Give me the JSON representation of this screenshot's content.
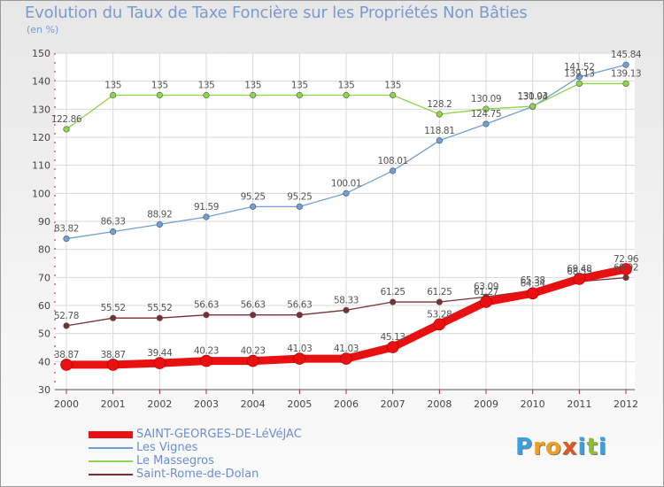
{
  "title": "Evolution du Taux de Taxe Foncière sur les Propriétés Non Bâties",
  "unit": "(en %)",
  "logo": {
    "text": "Proxiti",
    "colors": [
      "#3aa0e0",
      "#f0a020",
      "#f0a020",
      "#e05a20",
      "#3aa0e0",
      "#90c030",
      "#3aa0e0"
    ]
  },
  "chart_data": {
    "type": "line",
    "title": "Evolution du Taux de Taxe Foncière sur les Propriétés Non Bâties",
    "ylabel": "(en %)",
    "x": [
      "2000",
      "2001",
      "2002",
      "2003",
      "2004",
      "2005",
      "2006",
      "2007",
      "2008",
      "2009",
      "2010",
      "2011",
      "2012"
    ],
    "ylim": [
      30,
      150
    ],
    "yticks": [
      "30",
      "40",
      "50",
      "60",
      "70",
      "80",
      "90",
      "100",
      "110",
      "120",
      "130",
      "140",
      "150"
    ],
    "grid": true,
    "legend_placement": "bottom-left",
    "series": [
      {
        "name": "SAINT-GEORGES-DE-LéVéJAC",
        "color": "#e81010",
        "width": 9,
        "values": [
          38.87,
          38.87,
          39.44,
          40.23,
          40.23,
          41.03,
          41.03,
          45.13,
          53.28,
          61.27,
          64.34,
          69.48,
          72.96
        ],
        "labels": [
          "38.87",
          "38.87",
          "39.44",
          "40.23",
          "40.23",
          "41.03",
          "41.03",
          "45.13",
          "53.28",
          "61.27",
          "64.34",
          "69.48",
          "72.96"
        ]
      },
      {
        "name": "Les Vignes",
        "color": "#6f9fd6",
        "width": 1.3,
        "values": [
          83.82,
          86.33,
          88.92,
          91.59,
          95.25,
          95.25,
          100.01,
          108.01,
          118.81,
          124.75,
          130.94,
          141.52,
          145.84
        ],
        "labels": [
          "83.82",
          "86.33",
          "88.92",
          "91.59",
          "95.25",
          "95.25",
          "100.01",
          "108.01",
          "118.81",
          "124.75",
          "130.94",
          "141.52",
          "145.84"
        ]
      },
      {
        "name": "Le Massegros",
        "color": "#8cd64a",
        "width": 1.3,
        "values": [
          122.86,
          135,
          135,
          135,
          135,
          135,
          135,
          135,
          128.2,
          130.09,
          131.03,
          139.13,
          139.13
        ],
        "labels": [
          "122.86",
          "135",
          "135",
          "135",
          "135",
          "135",
          "135",
          "135",
          "128.2",
          "130.09",
          "131.03",
          "139.13",
          "139.13"
        ]
      },
      {
        "name": "Saint-Rome-de-Dolan",
        "color": "#7a3030",
        "width": 1.3,
        "values": [
          52.78,
          55.52,
          55.52,
          56.63,
          56.63,
          56.63,
          58.33,
          61.25,
          61.25,
          63.09,
          65.38,
          68.55,
          69.92
        ],
        "labels": [
          "52.78",
          "55.52",
          "55.52",
          "56.63",
          "56.63",
          "56.63",
          "58.33",
          "61.25",
          "61.25",
          "63.09",
          "65.38",
          "68.55",
          "69.92"
        ]
      }
    ]
  }
}
